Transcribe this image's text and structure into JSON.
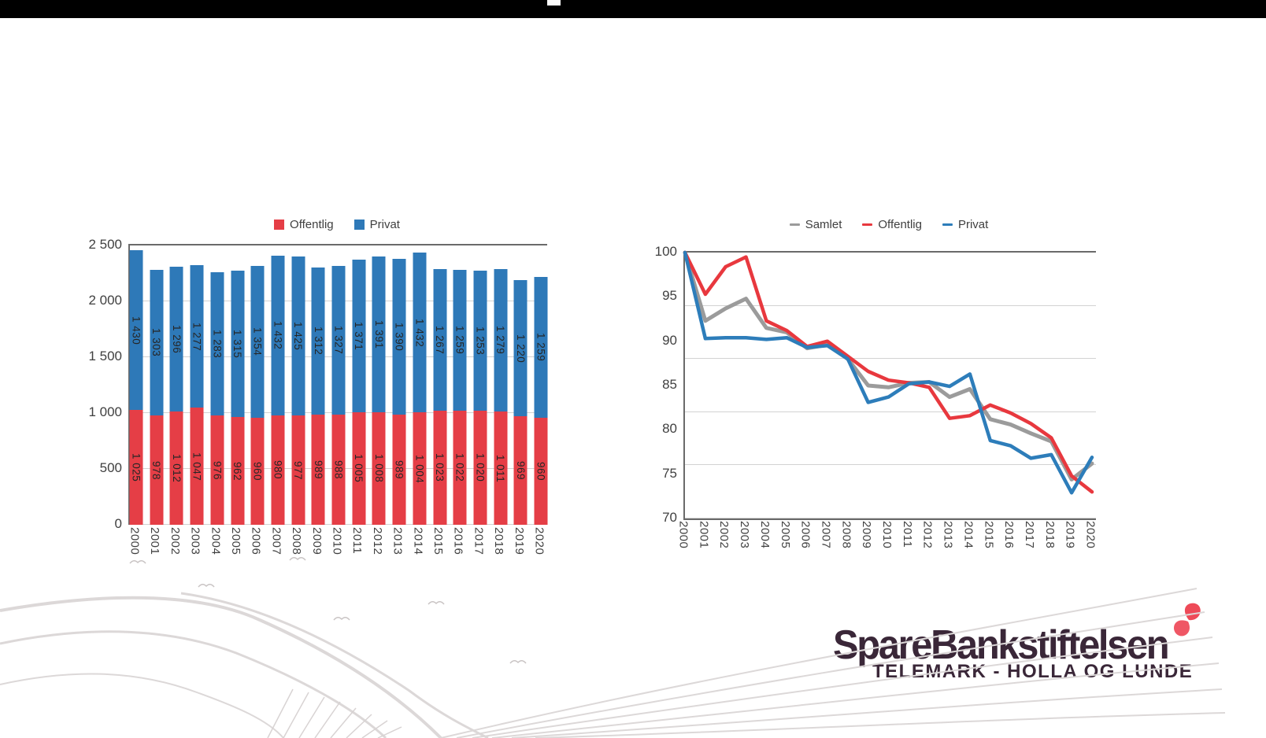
{
  "top_bar": {
    "notch": true
  },
  "logo": {
    "name": "SpareBankstiftelsen",
    "subtitle": "TELEMARK - HOLLA OG LUNDE",
    "text_color": "#3a2738",
    "butterfly_colors": [
      "#ee4a58",
      "#ef5765"
    ]
  },
  "colors": {
    "bar_red": "#e53e46",
    "bar_blue": "#2e79b8",
    "line_gray": "#9b9b9b",
    "line_red": "#e8383e",
    "line_blue": "#2d7dba",
    "axis_text": "#404040",
    "grid": "#d2d2d2"
  },
  "chart_data": [
    {
      "type": "bar",
      "stacked": true,
      "categories": [
        "2000",
        "2001",
        "2002",
        "2003",
        "2004",
        "2005",
        "2006",
        "2007",
        "2008",
        "2009",
        "2010",
        "2011",
        "2012",
        "2013",
        "2014",
        "2015",
        "2016",
        "2017",
        "2018",
        "2019",
        "2020"
      ],
      "series": [
        {
          "name": "Offentlig",
          "color": "#e53e46",
          "values": [
            1025,
            978,
            1012,
            1047,
            976,
            962,
            960,
            980,
            977,
            989,
            988,
            1005,
            1008,
            989,
            1004,
            1023,
            1022,
            1020,
            1011,
            969,
            960
          ],
          "labels": [
            "1 025",
            "978",
            "1 012",
            "1 047",
            "976",
            "962",
            "960",
            "980",
            "977",
            "989",
            "988",
            "1 005",
            "1 008",
            "989",
            "1 004",
            "1 023",
            "1 022",
            "1 020",
            "1 011",
            "969",
            "960"
          ]
        },
        {
          "name": "Privat",
          "color": "#2e79b8",
          "values": [
            1430,
            1303,
            1296,
            1277,
            1283,
            1315,
            1354,
            1432,
            1425,
            1312,
            1327,
            1371,
            1391,
            1390,
            1432,
            1267,
            1259,
            1253,
            1279,
            1220,
            1259
          ],
          "labels": [
            "1 430",
            "1 303",
            "1 296",
            "1 277",
            "1 283",
            "1 315",
            "1 354",
            "1 432",
            "1 425",
            "1 312",
            "1 327",
            "1 371",
            "1 391",
            "1 390",
            "1 432",
            "1 267",
            "1 259",
            "1 253",
            "1 279",
            "1 220",
            "1 259"
          ]
        }
      ],
      "ylim": [
        0,
        2500
      ],
      "yticks": [
        "2 500",
        "2 000",
        "1 500",
        "1 000",
        "500",
        "0"
      ],
      "legend_position": "top",
      "grid": true
    },
    {
      "type": "line",
      "x": [
        "2000",
        "2001",
        "2002",
        "2003",
        "2004",
        "2005",
        "2006",
        "2007",
        "2008",
        "2009",
        "2010",
        "2011",
        "2012",
        "2013",
        "2014",
        "2015",
        "2016",
        "2017",
        "2018",
        "2019",
        "2020"
      ],
      "series": [
        {
          "name": "Samlet",
          "color": "#9b9b9b",
          "values": [
            100,
            92.3,
            93.7,
            94.8,
            91.5,
            91.0,
            89.2,
            89.6,
            88.0,
            85.0,
            84.8,
            85.3,
            85.4,
            83.7,
            84.6,
            81.2,
            80.6,
            79.6,
            78.7,
            74.4,
            76.2
          ]
        },
        {
          "name": "Offentlig",
          "color": "#e8383e",
          "values": [
            100,
            95.3,
            98.4,
            99.5,
            92.3,
            91.2,
            89.4,
            90.0,
            88.3,
            86.6,
            85.6,
            85.3,
            84.8,
            81.3,
            81.6,
            82.8,
            81.9,
            80.7,
            79.1,
            74.8,
            73.0
          ]
        },
        {
          "name": "Privat",
          "color": "#2d7dba",
          "values": [
            100,
            90.3,
            90.4,
            90.4,
            90.2,
            90.4,
            89.3,
            89.5,
            88.0,
            83.1,
            83.7,
            85.2,
            85.4,
            84.9,
            86.3,
            78.8,
            78.2,
            76.8,
            77.2,
            72.9,
            76.9
          ]
        }
      ],
      "ylim": [
        70,
        100
      ],
      "yticks": [
        "100",
        "95",
        "90",
        "85",
        "80",
        "75",
        "70"
      ],
      "legend_position": "top",
      "grid": true
    }
  ]
}
